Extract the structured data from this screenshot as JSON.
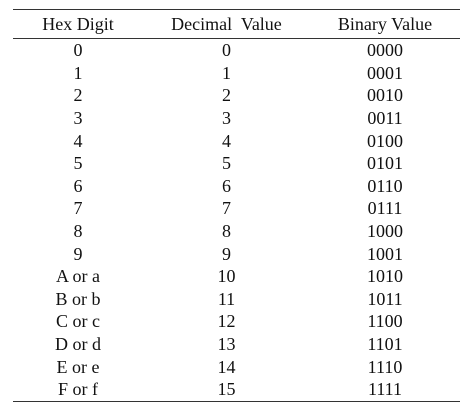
{
  "table": {
    "headers": [
      "Hex Digit",
      "Decimal  Value",
      "Binary Value"
    ],
    "rows": [
      [
        "0",
        "0",
        "0000"
      ],
      [
        "1",
        "1",
        "0001"
      ],
      [
        "2",
        "2",
        "0010"
      ],
      [
        "3",
        "3",
        "0011"
      ],
      [
        "4",
        "4",
        "0100"
      ],
      [
        "5",
        "5",
        "0101"
      ],
      [
        "6",
        "6",
        "0110"
      ],
      [
        "7",
        "7",
        "0111"
      ],
      [
        "8",
        "8",
        "1000"
      ],
      [
        "9",
        "9",
        "1001"
      ],
      [
        "A or a",
        "10",
        "1010"
      ],
      [
        "B or b",
        "11",
        "1011"
      ],
      [
        "C or c",
        "12",
        "1100"
      ],
      [
        "D or d",
        "13",
        "1101"
      ],
      [
        "E or e",
        "14",
        "1110"
      ],
      [
        "F or f",
        "15",
        "1111"
      ]
    ]
  }
}
